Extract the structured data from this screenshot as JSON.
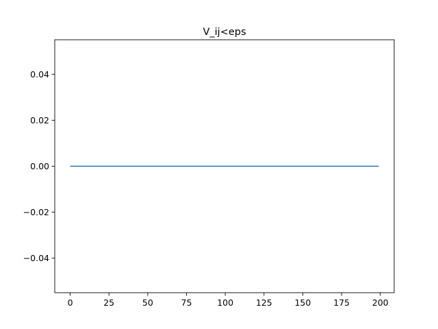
{
  "chart_data": {
    "type": "line",
    "title": "V_ij<eps",
    "xlabel": "",
    "ylabel": "",
    "xlim": [
      -9.95,
      208.95
    ],
    "ylim": [
      -0.055,
      0.055
    ],
    "x_ticks": [
      0,
      25,
      50,
      75,
      100,
      125,
      150,
      175,
      200
    ],
    "x_tick_labels": [
      "0",
      "25",
      "50",
      "75",
      "100",
      "125",
      "150",
      "175",
      "200"
    ],
    "y_ticks": [
      -0.04,
      -0.02,
      0.0,
      0.02,
      0.04
    ],
    "y_tick_labels": [
      "−0.04",
      "−0.02",
      "0.00",
      "0.02",
      "0.04"
    ],
    "grid": false,
    "series": [
      {
        "color": "#1f77b4",
        "x": [
          0,
          199
        ],
        "y": [
          0,
          0
        ]
      }
    ]
  }
}
